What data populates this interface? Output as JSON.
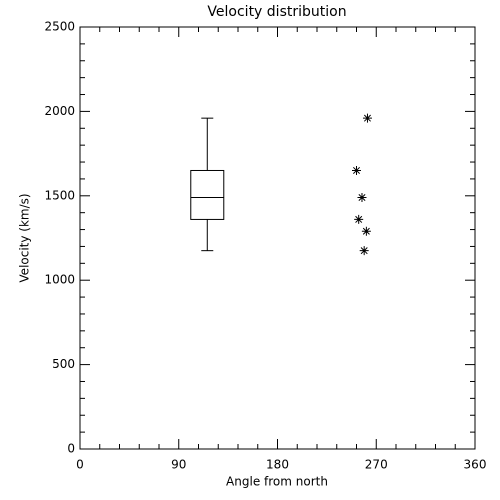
{
  "chart_data": {
    "type": "box",
    "title": "Velocity distribution",
    "xlabel": "Angle from north",
    "ylabel": "Velocity (km/s)",
    "box": {
      "x": 116,
      "min": 1175,
      "q1": 1360,
      "median": 1490,
      "q3": 1650,
      "max": 1960
    },
    "series": [
      {
        "type": "scatter",
        "marker": "asterisk",
        "color": "#000000",
        "x": [
          262,
          252,
          257,
          254,
          261,
          259
        ],
        "values": [
          1960,
          1650,
          1490,
          1360,
          1290,
          1175
        ]
      }
    ],
    "xlim": [
      0,
      360
    ],
    "xticks": [
      0,
      90,
      180,
      270,
      360
    ],
    "xminor": 5,
    "ylim": [
      0,
      2500
    ],
    "yticks": [
      0,
      500,
      1000,
      1500,
      2000,
      2500
    ],
    "yminor": 5
  }
}
